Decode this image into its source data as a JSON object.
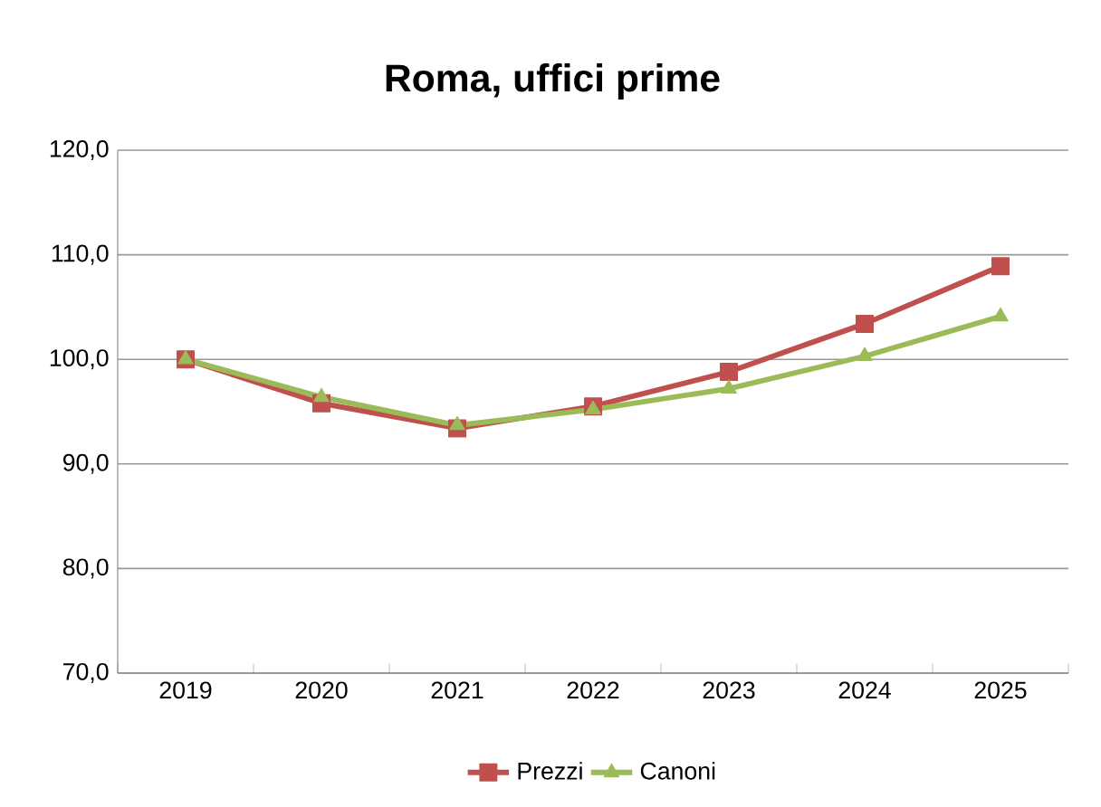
{
  "chart_data": {
    "type": "line",
    "title": "Roma, uffici prime",
    "categories": [
      "2019",
      "2020",
      "2021",
      "2022",
      "2023",
      "2024",
      "2025"
    ],
    "series": [
      {
        "name": "Prezzi",
        "color": "#c0504d",
        "marker": "square",
        "values": [
          100.0,
          95.8,
          93.4,
          95.5,
          98.8,
          103.4,
          108.9
        ]
      },
      {
        "name": "Canoni",
        "color": "#9bbb59",
        "marker": "triangle",
        "values": [
          100.0,
          96.4,
          93.7,
          95.2,
          97.2,
          100.3,
          104.1
        ]
      }
    ],
    "ylim": [
      70,
      120
    ],
    "yticks": [
      {
        "value": 70,
        "label": "70,0"
      },
      {
        "value": 80,
        "label": "80,0"
      },
      {
        "value": 90,
        "label": "90,0"
      },
      {
        "value": 100,
        "label": "100,0"
      },
      {
        "value": 110,
        "label": "110,0"
      },
      {
        "value": 120,
        "label": "120,0"
      }
    ],
    "grid": "y",
    "legend": "bottom",
    "line_style": "solid"
  }
}
